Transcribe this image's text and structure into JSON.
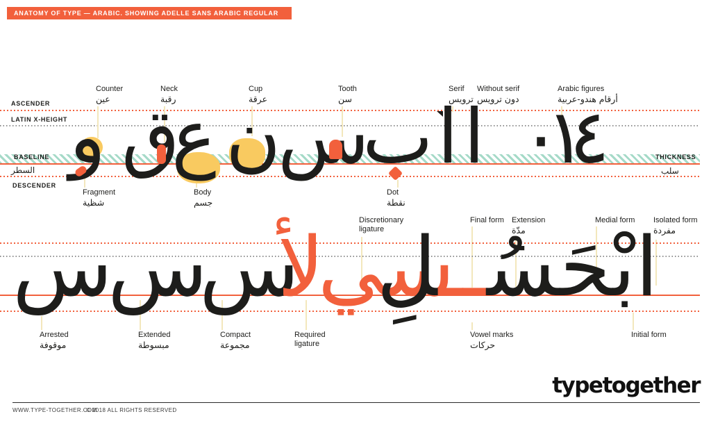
{
  "header": {
    "title": "ANATOMY OF TYPE — ARABIC. SHOWING ADELLE SANS ARABIC REGULAR"
  },
  "colors": {
    "orange": "#F2603C",
    "yellow": "#F9CA60",
    "teal": "#A5DAC8",
    "cream": "#F3E7BC",
    "ink": "#1D1D1B"
  },
  "guides": {
    "ascender": "ASCENDER",
    "x_height": "LATIN X-HEIGHT",
    "baseline_en": "BASELINE",
    "baseline_ar": "السطر",
    "descender": "DESCENDER",
    "thickness_en": "THICKNESS",
    "thickness_ar": "سلب"
  },
  "row1_top": [
    {
      "l1": "Counter",
      "l2": "عين"
    },
    {
      "l1": "Neck",
      "l2": "رقبة"
    },
    {
      "l1": "Cup",
      "l2": "عرقة"
    },
    {
      "l1": "Tooth",
      "l2": "سن"
    },
    {
      "l1": "Serif",
      "l2": "ترويس"
    },
    {
      "l1": "Without serif",
      "l2": "دون ترويس"
    },
    {
      "l1": "Arabic figures",
      "l2": "أرقام هندو-عربية"
    }
  ],
  "row1_bottom": [
    {
      "l1": "Fragment",
      "l2": "شظية"
    },
    {
      "l1": "Body",
      "l2": "جسم"
    },
    {
      "l1": "Dot",
      "l2": "نقطة"
    }
  ],
  "row2_top": [
    {
      "l1": "Discretionary",
      "l2": "ligature"
    },
    {
      "l1": "Final form",
      "l2": ""
    },
    {
      "l1": "Extension",
      "l2": "مدّة"
    },
    {
      "l1": "Medial form",
      "l2": ""
    },
    {
      "l1": "Isolated form",
      "l2": "مفردة"
    }
  ],
  "row2_bottom": [
    {
      "l1": "Arrested",
      "l2": "موقوفة"
    },
    {
      "l1": "Extended",
      "l2": "مبسوطة"
    },
    {
      "l1": "Compact",
      "l2": "مجموعة"
    },
    {
      "l1": "Required",
      "l2": "ligature"
    },
    {
      "l1": "Vowel marks",
      "l2": "حركات"
    },
    {
      "l1": "Initial form",
      "l2": ""
    }
  ],
  "glyphs_row1": {
    "waw": "و",
    "qaf": "ق",
    "ain": "ع",
    "noon": "ن",
    "seen": "س",
    "beh": "ب",
    "alef_serif": "ا",
    "alef_plain": "ا",
    "fig_zero": "٠",
    "fig_one": "١",
    "fig_four": "٤"
  },
  "glyphs_row2": {
    "seen_arrested": "س",
    "seen_extended": "س",
    "seen_compact": "س",
    "lam_alef": "لأ",
    "seen_yeh": "سي"
  },
  "row2_word": {
    "parts": [
      {
        "t": "ا",
        "c": "ink"
      },
      {
        "t": "ب",
        "c": "ink"
      },
      {
        "t": "ْ",
        "c": "orange"
      },
      {
        "t": "ح",
        "c": "ink"
      },
      {
        "t": "َ",
        "c": "orange"
      },
      {
        "t": "س",
        "c": "ink"
      },
      {
        "t": "ُ",
        "c": "orange"
      },
      {
        "t": "ــ",
        "c": "orange"
      },
      {
        "t": "ل",
        "c": "ink"
      },
      {
        "t": "ِ",
        "c": "orange"
      }
    ]
  },
  "logo": {
    "text": "typetogether"
  },
  "footer": {
    "site": "WWW.TYPE-TOGETHER.COM",
    "rights": "© 2018 ALL RIGHTS RESERVED"
  }
}
